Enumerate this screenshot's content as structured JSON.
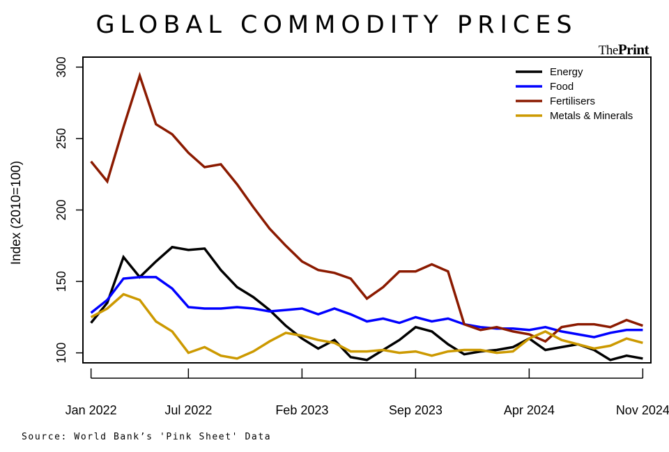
{
  "source": "Source: World Bank’s 'Pink Sheet' Data",
  "logo": {
    "prefix": "The",
    "name": "Print"
  },
  "chart_data": {
    "type": "line",
    "title": "GLOBAL COMMODITY PRICES",
    "xlabel": "",
    "ylabel": "Index (2010=100)",
    "ylim": [
      93,
      307
    ],
    "xlim": [
      0.5,
      35.5
    ],
    "x_ticks": [
      {
        "x": 1,
        "label": "Jan 2022"
      },
      {
        "x": 7,
        "label": "Jul 2022"
      },
      {
        "x": 14,
        "label": "Feb 2023"
      },
      {
        "x": 21,
        "label": "Sep 2023"
      },
      {
        "x": 28,
        "label": "Apr 2024"
      },
      {
        "x": 35,
        "label": "Nov 2024"
      }
    ],
    "y_ticks": [
      100,
      150,
      200,
      250,
      300
    ],
    "legend_position": "top-right",
    "x": [
      1,
      2,
      3,
      4,
      5,
      6,
      7,
      8,
      9,
      10,
      11,
      12,
      13,
      14,
      15,
      16,
      17,
      18,
      19,
      20,
      21,
      22,
      23,
      24,
      25,
      26,
      27,
      28,
      29,
      30,
      31,
      32,
      33,
      34,
      35
    ],
    "series": [
      {
        "name": "Energy",
        "color": "#000000",
        "values": [
          121,
          135,
          167,
          153,
          164,
          174,
          172,
          173,
          158,
          146,
          139,
          130,
          119,
          110,
          103,
          109,
          97,
          95,
          102,
          109,
          118,
          115,
          106,
          99,
          101,
          102,
          104,
          110,
          102,
          104,
          106,
          102,
          95,
          98,
          96
        ]
      },
      {
        "name": "Food",
        "color": "#0000ff",
        "values": [
          128,
          137,
          152,
          153,
          153,
          145,
          132,
          131,
          131,
          132,
          131,
          129,
          130,
          131,
          127,
          131,
          127,
          122,
          124,
          121,
          125,
          122,
          124,
          120,
          118,
          117,
          117,
          116,
          118,
          115,
          113,
          111,
          114,
          116,
          116
        ]
      },
      {
        "name": "Fertilisers",
        "color": "#8b1a00",
        "values": [
          234,
          220,
          258,
          294,
          260,
          253,
          240,
          230,
          232,
          218,
          202,
          187,
          175,
          164,
          158,
          156,
          152,
          138,
          146,
          157,
          157,
          162,
          157,
          120,
          116,
          118,
          115,
          113,
          108,
          118,
          120,
          120,
          118,
          123,
          119
        ]
      },
      {
        "name": "Metals & Minerals",
        "color": "#cc9900",
        "values": [
          125,
          131,
          141,
          137,
          122,
          115,
          100,
          104,
          98,
          96,
          101,
          108,
          114,
          112,
          109,
          107,
          101,
          101,
          102,
          100,
          101,
          98,
          101,
          102,
          102,
          100,
          101,
          110,
          115,
          109,
          106,
          103,
          105,
          110,
          107
        ]
      }
    ]
  }
}
